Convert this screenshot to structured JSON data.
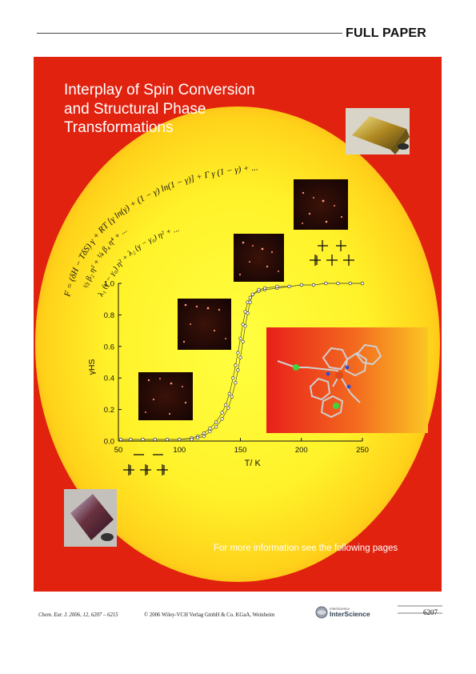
{
  "header": {
    "section_label": "FULL PAPER"
  },
  "poster": {
    "title_lines": [
      "Interplay of Spin Conversion",
      "and Structural Phase",
      "Transformations"
    ],
    "footer_text": "For more information see the following pages",
    "formula_lines": [
      "F = (δH − TδS) γ + RT [γ ln(γ) + (1 − γ) ln(1 − γ)] + Γ γ (1 − γ) + ...",
      "½ β₂ η² + ¼ β₄ η⁴ + ...",
      "λ₁ (γ − γ₀) η² + λ₂ (γ − γ₀) η² + ..."
    ]
  },
  "chart_data": {
    "type": "scatter",
    "xlabel": "T/ K",
    "ylabel": "γHS",
    "xlim": [
      50,
      250
    ],
    "ylim": [
      0.0,
      1.0
    ],
    "x_ticks": [
      "50",
      "100",
      "150",
      "200",
      "250"
    ],
    "y_ticks": [
      "0.0",
      "0.2",
      "0.4",
      "0.6",
      "0.8",
      "1.0"
    ],
    "grid": false,
    "series": [
      {
        "x": [
          52,
          60,
          70,
          80,
          90,
          100,
          110,
          115,
          120,
          125,
          130,
          135,
          138,
          141,
          144,
          146,
          148,
          150,
          152,
          154,
          156,
          158,
          160,
          165,
          170,
          180,
          190,
          200,
          210,
          220,
          230,
          240,
          250
        ],
        "y": [
          0.01,
          0.01,
          0.01,
          0.01,
          0.01,
          0.01,
          0.02,
          0.03,
          0.05,
          0.08,
          0.12,
          0.18,
          0.23,
          0.3,
          0.4,
          0.48,
          0.56,
          0.65,
          0.74,
          0.82,
          0.88,
          0.91,
          0.93,
          0.95,
          0.96,
          0.97,
          0.98,
          0.99,
          0.99,
          1.0,
          1.0,
          1.0,
          1.0
        ]
      },
      {
        "x": [
          52,
          60,
          70,
          80,
          90,
          100,
          110,
          115,
          120,
          125,
          130,
          135,
          140,
          143,
          146,
          148,
          150,
          152,
          154,
          156,
          158,
          160,
          165,
          170,
          180,
          190,
          200,
          210,
          220,
          230,
          240,
          250
        ],
        "y": [
          0.01,
          0.01,
          0.01,
          0.01,
          0.01,
          0.01,
          0.01,
          0.02,
          0.03,
          0.06,
          0.09,
          0.14,
          0.21,
          0.28,
          0.37,
          0.45,
          0.53,
          0.63,
          0.73,
          0.81,
          0.88,
          0.93,
          0.96,
          0.97,
          0.98,
          0.98,
          0.99,
          0.99,
          1.0,
          1.0,
          1.0,
          1.0
        ]
      }
    ]
  },
  "running_footer": {
    "journal_ref": "Chem. Eur. J. 2006, 12, 6207 – 6215",
    "copyright": "© 2006 Wiley-VCH Verlag GmbH & Co. KGaA, Weinheim",
    "logo_text_small": "InterScience",
    "logo_text": "InterScience",
    "page_number": "6207"
  }
}
